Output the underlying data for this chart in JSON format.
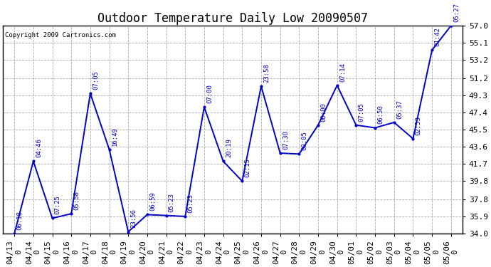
{
  "title": "Outdoor Temperature Daily Low 20090507",
  "copyright": "Copyright 2009 Cartronics.com",
  "x_labels": [
    "04/13\n0",
    "04/14\n0",
    "04/15\n0",
    "04/16\n0",
    "04/17\n0",
    "04/18\n0",
    "04/19\n0",
    "04/20\n0",
    "04/21\n0",
    "04/22\n0",
    "04/23\n0",
    "04/24\n0",
    "04/25\n0",
    "04/26\n0",
    "04/27\n0",
    "04/28\n0",
    "04/29\n0",
    "04/30\n0",
    "05/01\n0",
    "05/02\n0",
    "05/03\n0",
    "05/04\n0",
    "05/05\n0",
    "05/06\n0"
  ],
  "y_values": [
    34.0,
    42.0,
    35.7,
    36.2,
    49.5,
    43.3,
    34.2,
    36.1,
    36.0,
    35.9,
    48.0,
    42.0,
    39.8,
    50.3,
    42.9,
    42.8,
    46.0,
    50.4,
    46.0,
    45.7,
    46.3,
    44.5,
    54.3,
    57.0
  ],
  "point_labels": [
    "06:18",
    "04:46",
    "07:25",
    "05:58",
    "07:05",
    "16:49",
    "23:56",
    "06:59",
    "05:23",
    "05:23",
    "07:00",
    "20:19",
    "02:15",
    "23:58",
    "07:30",
    "00:05",
    "00:00",
    "07:14",
    "07:05",
    "06:50",
    "05:37",
    "02:53",
    "01:42",
    "05:27"
  ],
  "line_color": "#0000cc",
  "marker_color": "#0000cc",
  "bg_color": "#ffffff",
  "plot_bg_color": "#ffffff",
  "grid_color": "#aaaaaa",
  "title_fontsize": 12,
  "tick_fontsize": 8,
  "label_fontsize": 6.5,
  "copyright_fontsize": 6.5,
  "ylim_min": 34.0,
  "ylim_max": 57.0,
  "yticks": [
    34.0,
    35.9,
    37.8,
    39.8,
    41.7,
    43.6,
    45.5,
    47.4,
    49.3,
    51.2,
    53.2,
    55.1,
    57.0
  ]
}
